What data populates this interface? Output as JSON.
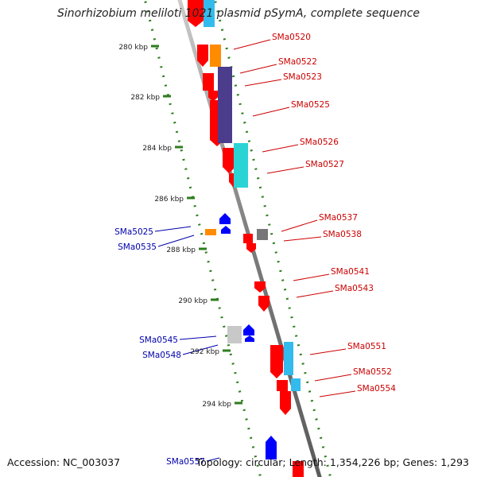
{
  "title": "Sinorhizobium meliloti 1021 plasmid pSymA, complete sequence",
  "footer": {
    "accession": "Accession: NC_003037",
    "summary": "Topology: circular; Length: 1,354,226 bp; Genes: 1,293"
  },
  "scale_labels": [
    "280 kbp",
    "282 kbp",
    "284 kbp",
    "286 kbp",
    "288 kbp",
    "290 kbp",
    "292 kbp",
    "294 kbp"
  ],
  "forward_gene_labels": [
    "SMa0520",
    "SMa0522",
    "SMa0523",
    "SMa0525",
    "SMa0526",
    "SMa0527",
    "SMa0537",
    "SMa0538",
    "SMa0541",
    "SMa0543",
    "SMa0551",
    "SMa0552",
    "SMa0554"
  ],
  "reverse_gene_labels": [
    "SMa5025",
    "SMa0535",
    "SMa0545",
    "SMa0548",
    "SMa0557"
  ],
  "colors": {
    "forward_label": "#cc0000",
    "reverse_label": "#0000aa",
    "scale_tick": "#2e7d1e",
    "backbone": "#8a8a8a",
    "cds_forward": "#ff0000",
    "cds_reverse": "#0000ff",
    "cog_orange": "#ff8c00",
    "cog_purple": "#4b3c8c",
    "cog_cyan": "#2ad4d4",
    "cog_gray": "#777777",
    "cog_light_blue": "#33bbee"
  }
}
